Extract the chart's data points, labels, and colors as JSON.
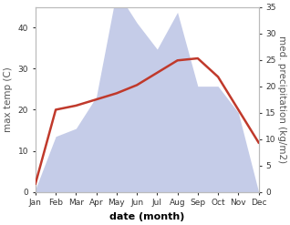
{
  "months": [
    "Jan",
    "Feb",
    "Mar",
    "Apr",
    "May",
    "Jun",
    "Jul",
    "Aug",
    "Sep",
    "Oct",
    "Nov",
    "Dec"
  ],
  "month_indices": [
    0,
    1,
    2,
    3,
    4,
    5,
    6,
    7,
    8,
    9,
    10,
    11
  ],
  "temperature": [
    2.0,
    20.0,
    21.0,
    22.5,
    24.0,
    26.0,
    29.0,
    32.0,
    32.5,
    28.0,
    20.0,
    12.0
  ],
  "precipitation": [
    0.5,
    10.5,
    12.0,
    18.0,
    38.0,
    32.0,
    27.0,
    34.0,
    20.0,
    20.0,
    15.0,
    0.0
  ],
  "temp_color": "#c0392b",
  "precip_fill_color": "#c5cce8",
  "ylabel_left": "max temp (C)",
  "ylabel_right": "med. precipitation (kg/m2)",
  "xlabel": "date (month)",
  "ylim_left": [
    0,
    45
  ],
  "ylim_right": [
    0,
    35
  ],
  "yticks_left": [
    0,
    10,
    20,
    30,
    40
  ],
  "yticks_right": [
    0,
    5,
    10,
    15,
    20,
    25,
    30,
    35
  ],
  "bg_color": "#ffffff",
  "temp_linewidth": 1.8,
  "xlabel_fontsize": 8,
  "ylabel_fontsize": 7.5,
  "tick_fontsize": 6.5,
  "spine_color": "#bbbbbb",
  "label_color": "#555555"
}
